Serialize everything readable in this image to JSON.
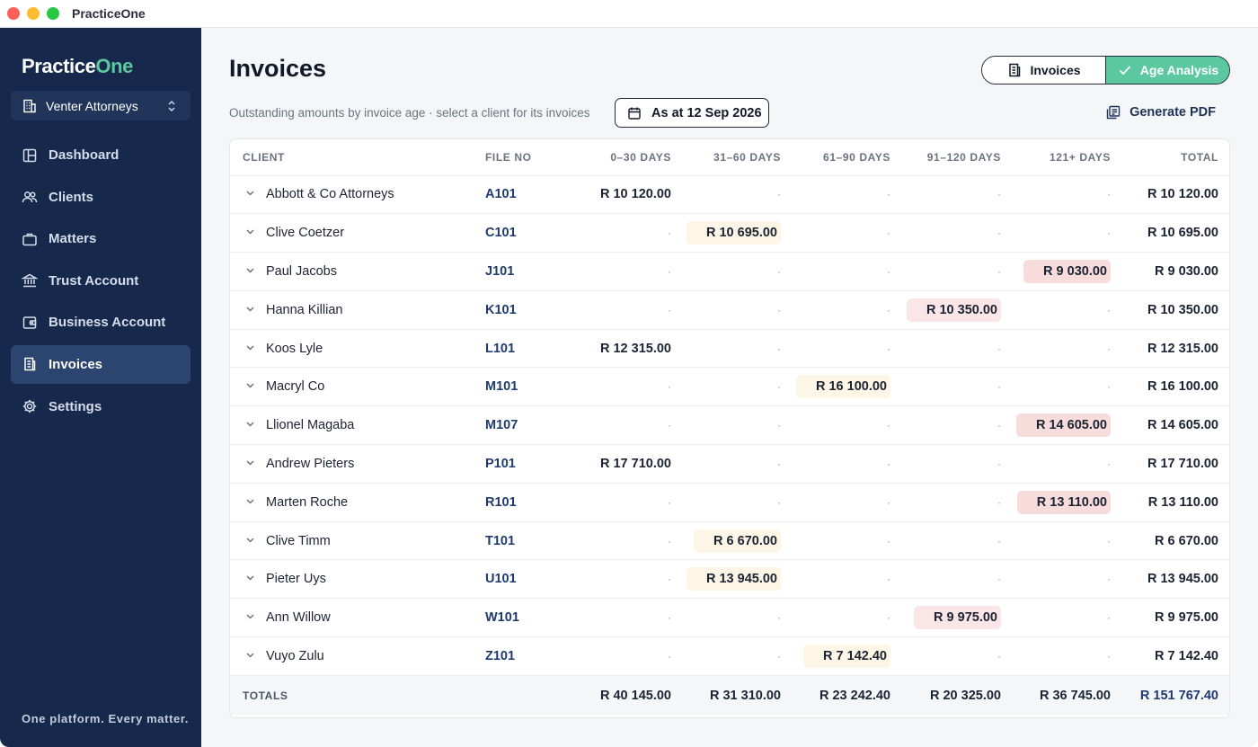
{
  "window": {
    "title": "PracticeOne"
  },
  "sidebar": {
    "brand_main": "Practice",
    "brand_accent": "One",
    "org": "Venter Attorneys",
    "items": [
      {
        "label": "Dashboard",
        "icon": "dashboard-icon"
      },
      {
        "label": "Clients",
        "icon": "users-icon"
      },
      {
        "label": "Matters",
        "icon": "briefcase-icon"
      },
      {
        "label": "Trust Account",
        "icon": "bank-icon"
      },
      {
        "label": "Business Account",
        "icon": "wallet-icon"
      },
      {
        "label": "Invoices",
        "icon": "receipt-icon",
        "active": true
      },
      {
        "label": "Settings",
        "icon": "gear-icon"
      }
    ],
    "tagline": "One platform. Every matter."
  },
  "header": {
    "title": "Invoices",
    "toggle_invoices": "Invoices",
    "toggle_age": "Age Analysis",
    "subtitle": "Outstanding amounts by invoice age · select a client for its invoices",
    "as_at": "As at 12 Sep 2026",
    "generate_pdf": "Generate PDF"
  },
  "table": {
    "columns": [
      "CLIENT",
      "FILE NO",
      "0–30 DAYS",
      "31–60 DAYS",
      "61–90 DAYS",
      "91–120 DAYS",
      "121+ DAYS",
      "TOTAL"
    ],
    "empty_marker": "·",
    "rows": [
      {
        "client": "Abbott & Co Attorneys",
        "file": "A101",
        "age": 0,
        "amount": "R 10 120.00",
        "total": "R 10 120.00"
      },
      {
        "client": "Clive Coetzer",
        "file": "C101",
        "age": 1,
        "amount": "R 10 695.00",
        "total": "R 10 695.00"
      },
      {
        "client": "Paul Jacobs",
        "file": "J101",
        "age": 4,
        "amount": "R 9 030.00",
        "total": "R 9 030.00"
      },
      {
        "client": "Hanna Killian",
        "file": "K101",
        "age": 3,
        "amount": "R 10 350.00",
        "total": "R 10 350.00"
      },
      {
        "client": "Koos Lyle",
        "file": "L101",
        "age": 0,
        "amount": "R 12 315.00",
        "total": "R 12 315.00"
      },
      {
        "client": "Macryl Co",
        "file": "M101",
        "age": 2,
        "amount": "R 16 100.00",
        "total": "R 16 100.00"
      },
      {
        "client": "Llionel Magaba",
        "file": "M107",
        "age": 4,
        "amount": "R 14 605.00",
        "total": "R 14 605.00"
      },
      {
        "client": "Andrew Pieters",
        "file": "P101",
        "age": 0,
        "amount": "R 17 710.00",
        "total": "R 17 710.00"
      },
      {
        "client": "Marten Roche",
        "file": "R101",
        "age": 4,
        "amount": "R 13 110.00",
        "total": "R 13 110.00"
      },
      {
        "client": "Clive Timm",
        "file": "T101",
        "age": 1,
        "amount": "R 6 670.00",
        "total": "R 6 670.00"
      },
      {
        "client": "Pieter Uys",
        "file": "U101",
        "age": 1,
        "amount": "R 13 945.00",
        "total": "R 13 945.00"
      },
      {
        "client": "Ann Willow",
        "file": "W101",
        "age": 3,
        "amount": "R 9 975.00",
        "total": "R 9 975.00"
      },
      {
        "client": "Vuyo Zulu",
        "file": "Z101",
        "age": 2,
        "amount": "R 7 142.40",
        "total": "R 7 142.40"
      }
    ],
    "totals": {
      "label": "TOTALS",
      "values": [
        "R 40 145.00",
        "R 31 310.00",
        "R 23 242.40",
        "R 20 325.00",
        "R 36 745.00"
      ],
      "grand": "R 151 767.40"
    }
  },
  "colors": {
    "sidebar_bg": "#16284b",
    "accent": "#5cc8a0",
    "age_1_2_highlight": "#fdf6e6",
    "age_3_highlight": "#fae6e6",
    "age_4_highlight": "#f8dcdc",
    "link": "#1e3a6e"
  }
}
